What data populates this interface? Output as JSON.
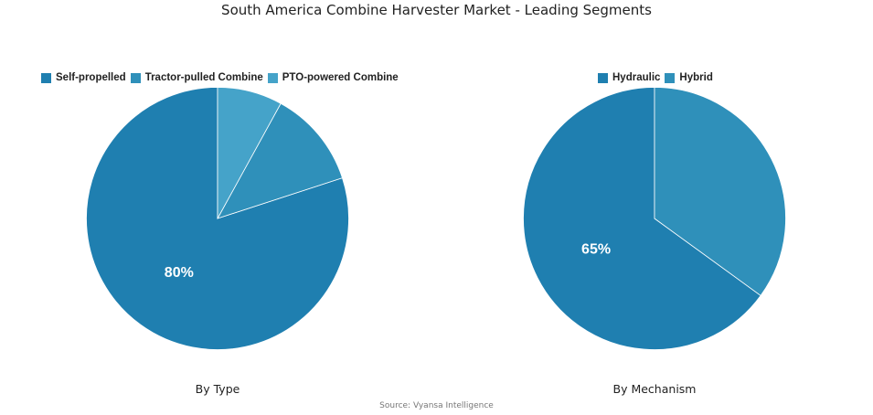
{
  "title": "South America Combine Harvester Market - Leading Segments",
  "source": "Source: Vyansa Intelligence",
  "chart_data": [
    {
      "type": "pie",
      "caption": "By Type",
      "legend_position": "top",
      "labels": [
        "Self-propelled",
        "Tractor-pulled Combine",
        "PTO-powered Combine"
      ],
      "values": [
        80,
        12,
        8
      ],
      "colors": [
        "#1f7fb0",
        "#2f90ba",
        "#45a3c9"
      ],
      "data_labels": [
        "80%",
        "",
        ""
      ]
    },
    {
      "type": "pie",
      "caption": "By Mechanism",
      "legend_position": "top",
      "labels": [
        "Hydraulic",
        "Hybrid"
      ],
      "values": [
        65,
        35
      ],
      "colors": [
        "#1f7fb0",
        "#2f90ba"
      ],
      "data_labels": [
        "65%",
        ""
      ]
    }
  ]
}
